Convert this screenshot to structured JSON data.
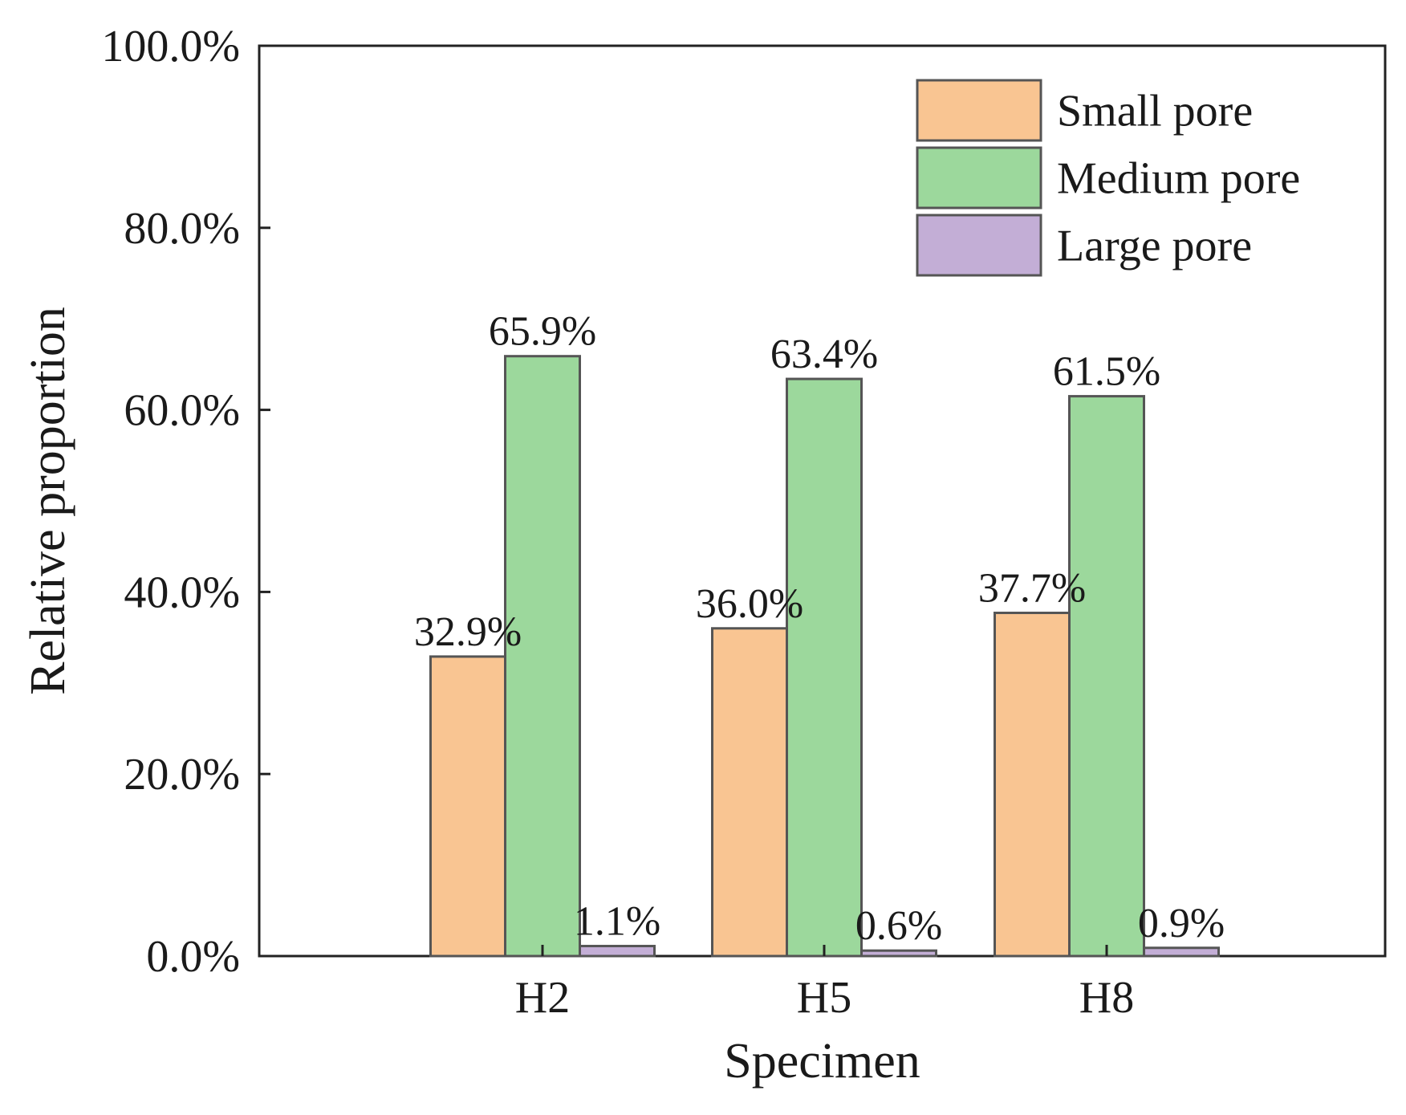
{
  "chart_data": {
    "type": "bar",
    "xlabel": "Specimen",
    "ylabel": "Relative proportion",
    "categories": [
      "H2",
      "H5",
      "H8"
    ],
    "series": [
      {
        "name": "Small pore",
        "values": [
          32.9,
          36.0,
          37.7
        ],
        "labels": [
          "32.9%",
          "36.0%",
          "37.7%"
        ],
        "color": "#f9c592"
      },
      {
        "name": "Medium pore",
        "values": [
          65.9,
          63.4,
          61.5
        ],
        "labels": [
          "65.9%",
          "63.4%",
          "61.5%"
        ],
        "color": "#9cd89c"
      },
      {
        "name": "Large pore",
        "values": [
          1.1,
          0.6,
          0.9
        ],
        "labels": [
          "1.1%",
          "0.6%",
          "0.9%"
        ],
        "color": "#c3aed6"
      }
    ],
    "ylim": [
      0,
      100
    ],
    "yticks": [
      0,
      20,
      40,
      60,
      80,
      100
    ],
    "ytick_labels": [
      "0.0%",
      "20.0%",
      "40.0%",
      "60.0%",
      "80.0%",
      "100.0%"
    ],
    "legend_position": "top-right",
    "grid": false,
    "colors": {
      "axis": "#222222",
      "bar_edge": "#555555"
    }
  }
}
